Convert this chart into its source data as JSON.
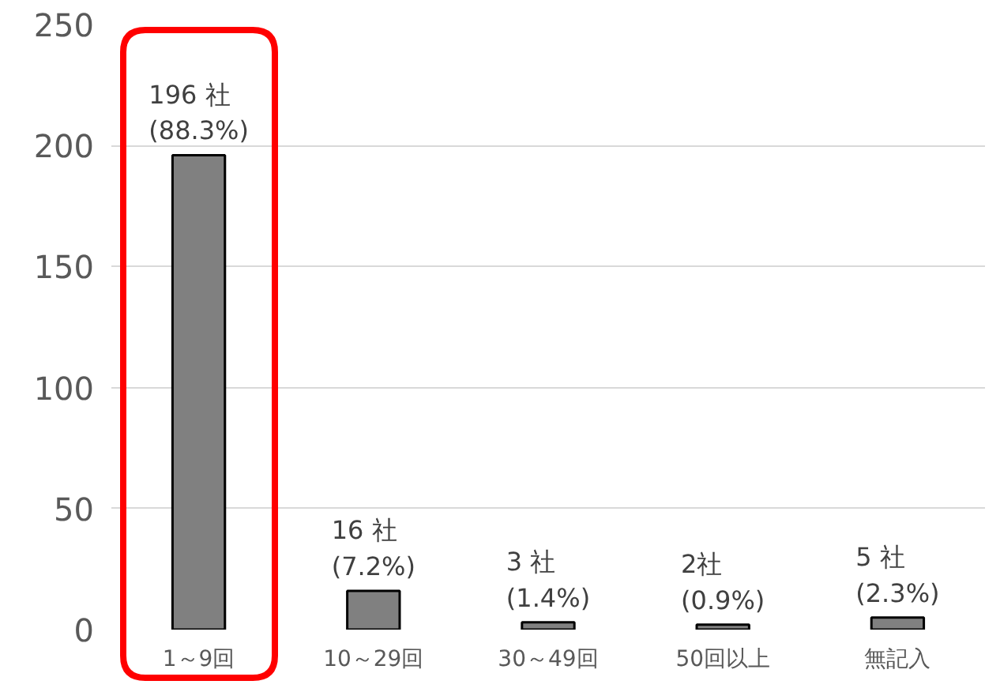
{
  "chart_data": {
    "type": "bar",
    "categories": [
      "1～9回",
      "10～29回",
      "30～49回",
      "50回以上",
      "無記入"
    ],
    "values": [
      196,
      16,
      3,
      2,
      5
    ],
    "value_labels": [
      "196 社\n(88.3%)",
      "16 社\n(7.2%)",
      "3 社\n(1.4%)",
      "2社\n(0.9%)",
      "5 社\n(2.3%)"
    ],
    "color": "#808080",
    "ylim": [
      0,
      250
    ],
    "yticks": [
      0,
      50,
      100,
      150,
      200,
      250
    ],
    "grid": "y"
  }
}
